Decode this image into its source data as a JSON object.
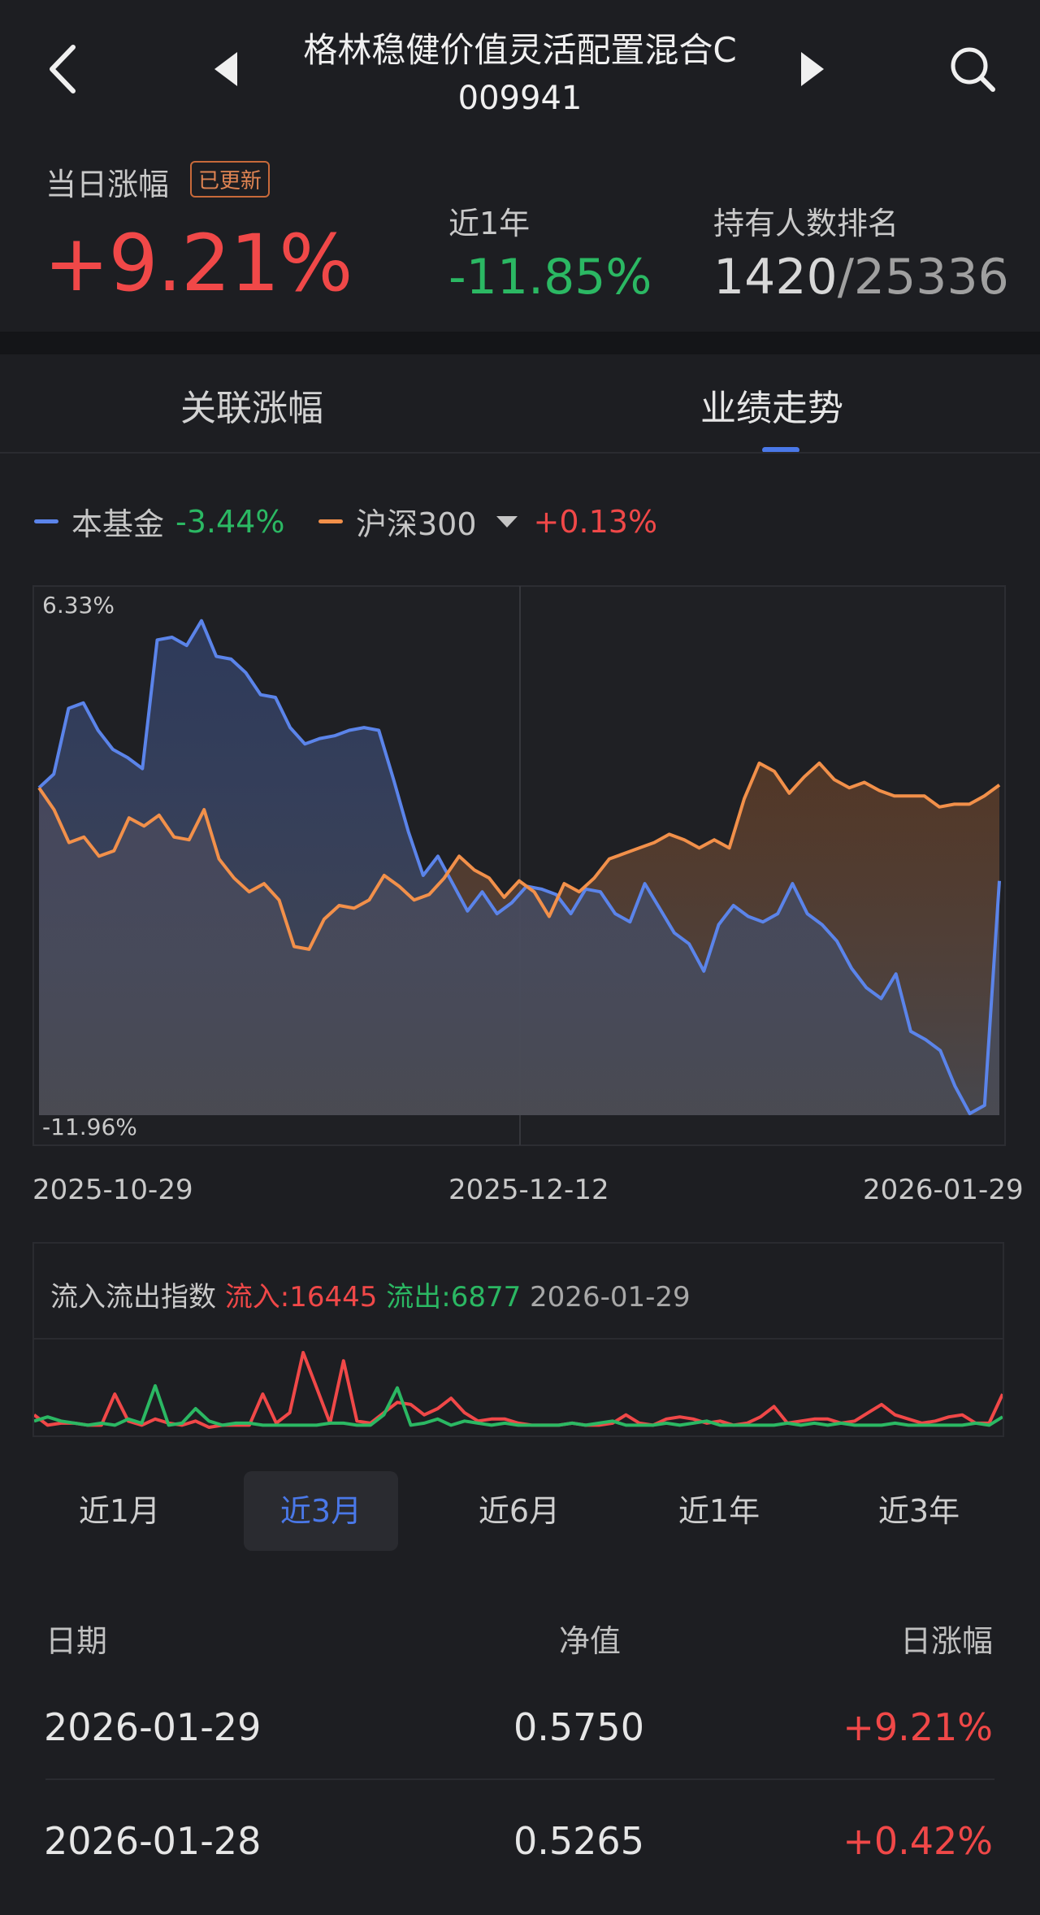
{
  "header": {
    "title": "格林稳健价值灵活配置混合C",
    "code": "009941"
  },
  "summary": {
    "daily_label": "当日涨幅",
    "updated_badge": "已更新",
    "daily_value": "+9.21%",
    "year_label": "近1年",
    "year_value": "-11.85%",
    "rank_label": "持有人数排名",
    "rank_position": "1420",
    "rank_total": "/25336"
  },
  "tabs": [
    {
      "label": "关联涨幅",
      "active": false
    },
    {
      "label": "业绩走势",
      "active": true
    }
  ],
  "legend": {
    "fund_name": "本基金",
    "fund_value": "-3.44%",
    "index_name": "沪深300",
    "index_value": "+0.13%"
  },
  "colors": {
    "fund": "#5b84ea",
    "index": "#f2904a",
    "up": "#f04848",
    "down": "#2bb863"
  },
  "chart_data": {
    "type": "line",
    "y_max_label": "6.33%",
    "y_min_label": "-11.96%",
    "ylim": [
      -11.96,
      6.33
    ],
    "x_tick_labels": [
      "2025-10-29",
      "2025-12-12",
      "2026-01-29"
    ],
    "series": [
      {
        "name": "本基金",
        "values": [
          0,
          0.5,
          2.9,
          3.1,
          2.1,
          1.4,
          1.1,
          0.7,
          5.4,
          5.5,
          5.2,
          6.1,
          4.8,
          4.7,
          4.2,
          3.4,
          3.3,
          2.2,
          1.6,
          1.8,
          1.9,
          2.1,
          2.2,
          2.1,
          0.3,
          -1.6,
          -3.2,
          -2.5,
          -3.5,
          -4.5,
          -3.8,
          -4.6,
          -4.2,
          -3.6,
          -3.7,
          -3.9,
          -4.6,
          -3.7,
          -3.8,
          -4.6,
          -4.9,
          -3.5,
          -4.4,
          -5.3,
          -5.7,
          -6.7,
          -5.0,
          -4.3,
          -4.7,
          -4.9,
          -4.6,
          -3.5,
          -4.6,
          -5.0,
          -5.6,
          -6.6,
          -7.3,
          -7.7,
          -6.8,
          -8.9,
          -9.2,
          -9.6,
          -10.9,
          -11.9,
          -11.6,
          -3.4
        ],
        "color": "#5b84ea"
      },
      {
        "name": "沪深300",
        "values": [
          0,
          -0.8,
          -2.0,
          -1.8,
          -2.5,
          -2.3,
          -1.1,
          -1.4,
          -1.0,
          -1.8,
          -1.9,
          -0.8,
          -2.6,
          -3.3,
          -3.8,
          -3.5,
          -4.1,
          -5.8,
          -5.9,
          -4.8,
          -4.3,
          -4.4,
          -4.1,
          -3.2,
          -3.6,
          -4.1,
          -3.9,
          -3.3,
          -2.5,
          -3.0,
          -3.3,
          -4.0,
          -3.4,
          -3.8,
          -4.7,
          -3.5,
          -3.8,
          -3.3,
          -2.6,
          -2.4,
          -2.2,
          -2.0,
          -1.7,
          -1.9,
          -2.2,
          -1.9,
          -2.2,
          -0.4,
          0.9,
          0.6,
          -0.2,
          0.4,
          0.9,
          0.3,
          0.0,
          0.2,
          -0.1,
          -0.3,
          -0.3,
          -0.3,
          -0.7,
          -0.6,
          -0.6,
          -0.3,
          0.1
        ],
        "color": "#f2904a"
      }
    ]
  },
  "flow": {
    "title": "流入流出指数",
    "inflow": "流入:16445",
    "outflow": "流出:6877",
    "date": "2026-01-29",
    "in_values": [
      6,
      1,
      2,
      2,
      1,
      1,
      16,
      3,
      1,
      4,
      2,
      1,
      3,
      0,
      1,
      1,
      1,
      16,
      2,
      7,
      36,
      19,
      2,
      32,
      3,
      2,
      7,
      12,
      11,
      6,
      9,
      14,
      7,
      3,
      4,
      4,
      2,
      1,
      1,
      1,
      2,
      1,
      1,
      2,
      6,
      2,
      1,
      4,
      5,
      4,
      2,
      3,
      1,
      2,
      5,
      10,
      2,
      3,
      4,
      4,
      2,
      3,
      7,
      11,
      6,
      4,
      2,
      3,
      5,
      6,
      2,
      2,
      16
    ],
    "out_values": [
      3,
      5,
      3,
      2,
      1,
      2,
      1,
      4,
      2,
      20,
      1,
      2,
      9,
      3,
      1,
      2,
      2,
      1,
      1,
      1,
      1,
      1,
      2,
      2,
      1,
      1,
      6,
      19,
      1,
      2,
      4,
      1,
      3,
      2,
      1,
      2,
      1,
      1,
      1,
      1,
      2,
      1,
      2,
      3,
      1,
      1,
      1,
      2,
      1,
      2,
      3,
      1,
      1,
      1,
      1,
      1,
      2,
      1,
      2,
      1,
      2,
      1,
      1,
      1,
      2,
      1,
      1,
      1,
      1,
      1,
      2,
      1,
      5
    ]
  },
  "periods": [
    {
      "label": "近1月",
      "active": false
    },
    {
      "label": "近3月",
      "active": true
    },
    {
      "label": "近6月",
      "active": false
    },
    {
      "label": "近1年",
      "active": false
    },
    {
      "label": "近3年",
      "active": false
    }
  ],
  "table": {
    "headers": [
      "日期",
      "净值",
      "日涨幅"
    ],
    "rows": [
      {
        "date": "2026-01-29",
        "nav": "0.5750",
        "change": "+9.21%"
      },
      {
        "date": "2026-01-28",
        "nav": "0.5265",
        "change": "+0.42%"
      }
    ]
  }
}
